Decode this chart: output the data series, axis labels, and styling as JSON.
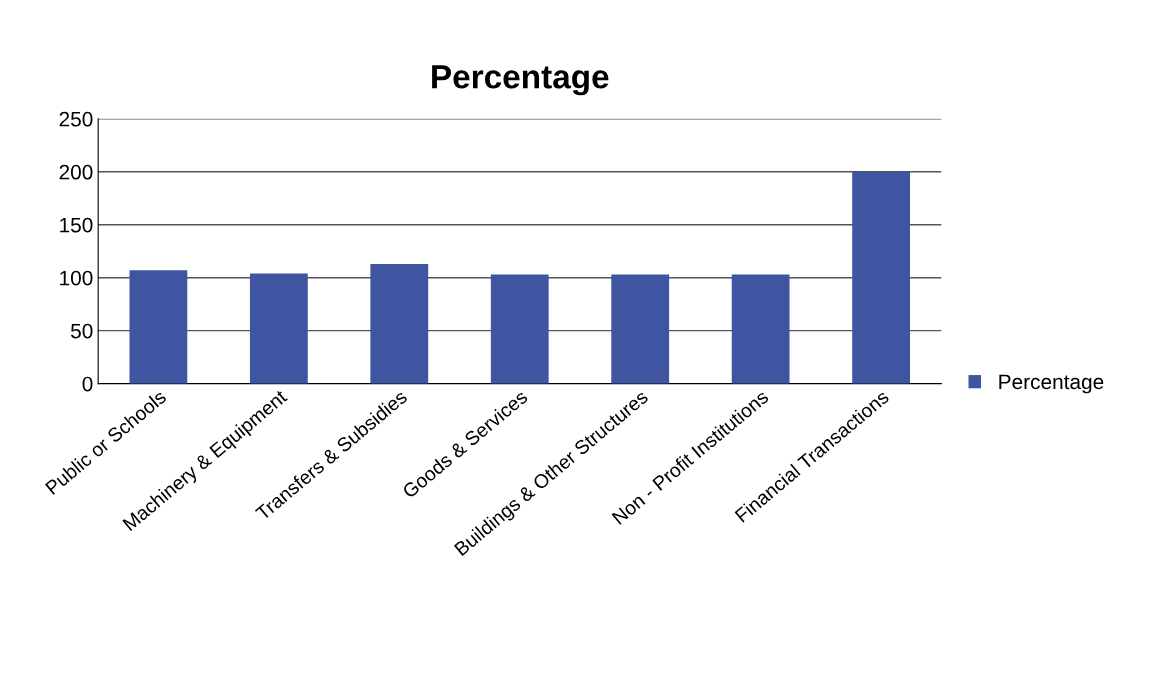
{
  "chart_data": {
    "type": "bar",
    "title": "Percentage",
    "categories": [
      "Public or Schools",
      "Machinery & Equipment",
      "Transfers & Subsidies",
      "Goods & Services",
      "Buildings & Other Structures",
      "Non - Profit Institutions",
      "Financial Transactions"
    ],
    "series": [
      {
        "name": "Percentage",
        "color": "#3f55a2",
        "values": [
          107,
          104,
          113,
          103,
          103,
          103,
          200
        ]
      }
    ],
    "ylim": [
      0,
      250
    ],
    "yticks": [
      0,
      50,
      100,
      150,
      200,
      250
    ],
    "grid": "y",
    "legend": "right"
  }
}
